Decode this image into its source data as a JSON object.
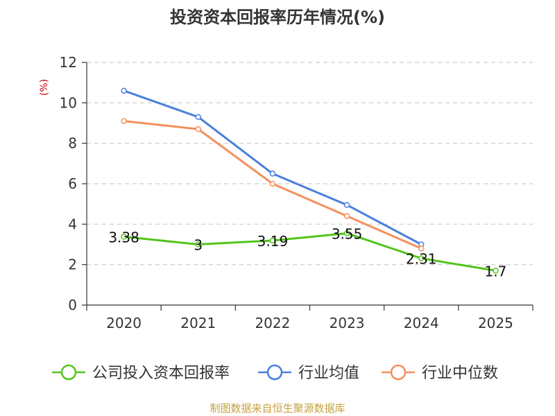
{
  "chart_data": {
    "type": "line",
    "title": "投资资本回报率历年情况(%)",
    "ylabel": "(%)",
    "xlabel": "",
    "categories": [
      "2020",
      "2021",
      "2022",
      "2023",
      "2024",
      "2025"
    ],
    "ylim": [
      0,
      12
    ],
    "yticks": [
      0,
      2,
      4,
      6,
      8,
      10,
      12
    ],
    "grid": true,
    "legend_position": "bottom",
    "series": [
      {
        "name": "公司投入资本回报率",
        "color": "#52c41a",
        "values": [
          3.38,
          3,
          3.19,
          3.55,
          2.31,
          1.7
        ],
        "labels": [
          "3.38",
          "3",
          "3.19",
          "3.55",
          "2.31",
          "1.7"
        ]
      },
      {
        "name": "行业均值",
        "color": "#4a7fdc",
        "values": [
          10.6,
          9.3,
          6.5,
          4.95,
          3.0,
          null
        ]
      },
      {
        "name": "行业中位数",
        "color": "#f58f5c",
        "values": [
          9.1,
          8.7,
          6.0,
          4.4,
          2.8,
          null
        ]
      }
    ],
    "source": "制图数据来自恒生聚源数据库"
  }
}
